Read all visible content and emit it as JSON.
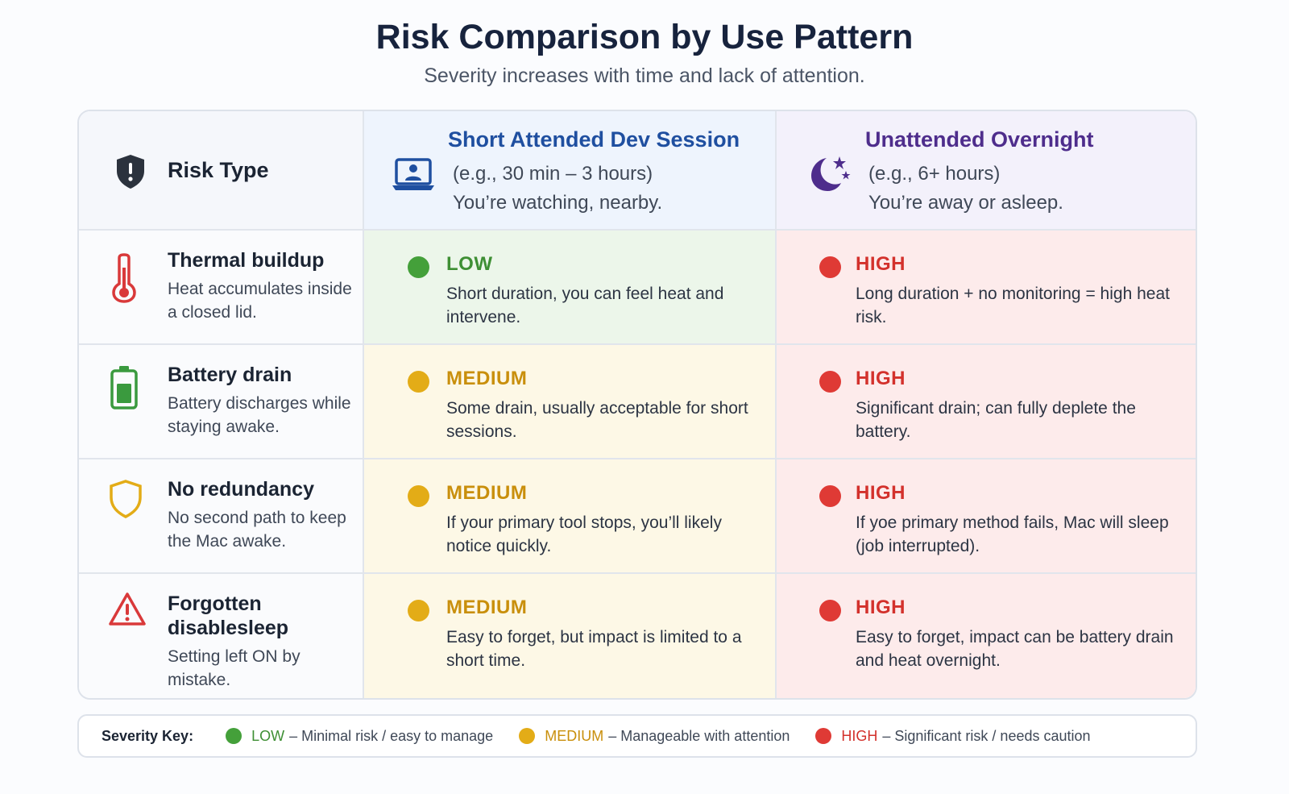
{
  "title": "Risk Comparison by Use Pattern",
  "subtitle": "Severity increases with time and lack of attention.",
  "header": {
    "risk_type": "Risk Type",
    "short": {
      "title": "Short Attended Dev Session",
      "line1": "(e.g., 30 min – 3 hours)",
      "line2": "You’re watching, nearby.",
      "icon": "laptop-user-icon",
      "color": "#1f4fa0"
    },
    "night": {
      "title": "Unattended Overnight",
      "line1": "(e.g., 6+ hours)",
      "line2": "You’re away or asleep.",
      "icon": "moon-stars-icon",
      "color": "#4e2d8c"
    }
  },
  "rows": [
    {
      "name": "Thermal buildup",
      "desc": "Heat accumulates inside a closed lid.",
      "icon": "thermometer-icon",
      "short": {
        "level": "LOW",
        "desc": "Short duration, you can feel heat and intervene."
      },
      "night": {
        "level": "HIGH",
        "desc": "Long duration + no monitoring = high heat risk."
      }
    },
    {
      "name": "Battery drain",
      "desc": "Battery discharges while staying awake.",
      "icon": "battery-icon",
      "short": {
        "level": "MEDIUM",
        "desc": "Some drain, usually acceptable for short sessions."
      },
      "night": {
        "level": "HIGH",
        "desc": "Significant drain; can fully deplete the battery."
      }
    },
    {
      "name": "No redundancy",
      "desc": "No second path to keep the Mac awake.",
      "icon": "shield-outline-icon",
      "short": {
        "level": "MEDIUM",
        "desc": "If your primary tool stops, you’ll likely notice quickly."
      },
      "night": {
        "level": "HIGH",
        "desc": "If yoe primary method fails, Mac will sleep (job interrupted)."
      }
    },
    {
      "name": "Forgotten disablesleep",
      "desc": "Setting left ON by mistake.",
      "icon": "warning-triangle-icon",
      "short": {
        "level": "MEDIUM",
        "desc": "Easy to forget, but impact is limited to a short time."
      },
      "night": {
        "level": "HIGH",
        "desc": "Easy to forget, impact can be battery drain and heat overnight."
      }
    }
  ],
  "key": {
    "title": "Severity Key:",
    "items": [
      {
        "level": "LOW",
        "desc": "– Minimal risk / easy to manage",
        "color": "#44a03a"
      },
      {
        "level": "MEDIUM",
        "desc": "– Manageable with attention",
        "color": "#e3ac17"
      },
      {
        "level": "HIGH",
        "desc": "– Significant risk / needs caution",
        "color": "#df3a35"
      }
    ]
  }
}
